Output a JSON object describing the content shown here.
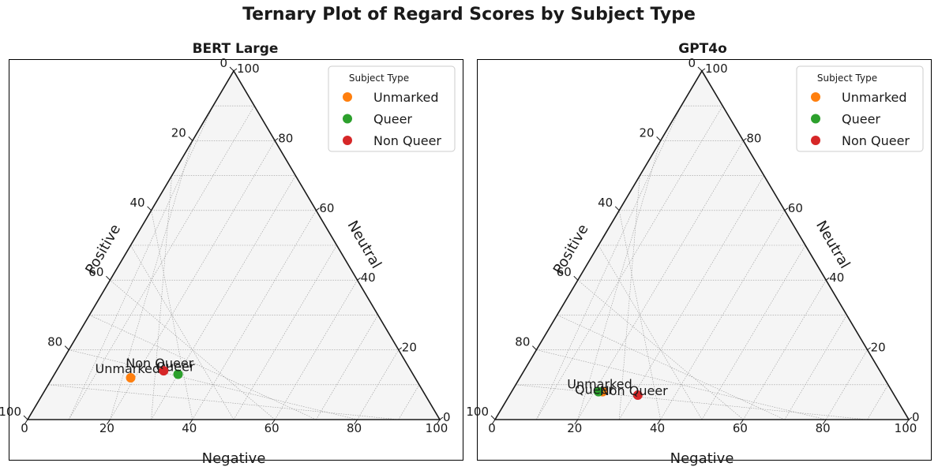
{
  "title": "Ternary Plot of Regard Scores by Subject Type",
  "chart_data": [
    {
      "type": "scatter",
      "subtype": "ternary",
      "title": "BERT Large",
      "axes": {
        "bottom": "Negative",
        "left": "Positive",
        "right": "Neutral"
      },
      "ticks": [
        "0",
        "20",
        "40",
        "60",
        "80",
        "100"
      ],
      "grid": true,
      "legend": {
        "title": "Subject Type",
        "position": "top-right"
      },
      "series": [
        {
          "name": "Unmarked",
          "color": "#ff7f0e",
          "negative": 19,
          "positive": 69,
          "neutral": 12
        },
        {
          "name": "Queer",
          "color": "#2ca02c",
          "negative": 30,
          "positive": 57,
          "neutral": 13
        },
        {
          "name": "Non Queer",
          "color": "#d62728",
          "negative": 26,
          "positive": 60,
          "neutral": 14
        }
      ]
    },
    {
      "type": "scatter",
      "subtype": "ternary",
      "title": "GPT4o",
      "axes": {
        "bottom": "Negative",
        "left": "Positive",
        "right": "Neutral"
      },
      "ticks": [
        "0",
        "20",
        "40",
        "60",
        "80",
        "100"
      ],
      "grid": true,
      "legend": {
        "title": "Subject Type",
        "position": "top-right"
      },
      "series": [
        {
          "name": "Unmarked",
          "color": "#ff7f0e",
          "negative": 22,
          "positive": 70,
          "neutral": 8
        },
        {
          "name": "Queer",
          "color": "#2ca02c",
          "negative": 21,
          "positive": 71,
          "neutral": 8
        },
        {
          "name": "Non Queer",
          "color": "#d62728",
          "negative": 31,
          "positive": 62,
          "neutral": 7
        }
      ]
    }
  ]
}
